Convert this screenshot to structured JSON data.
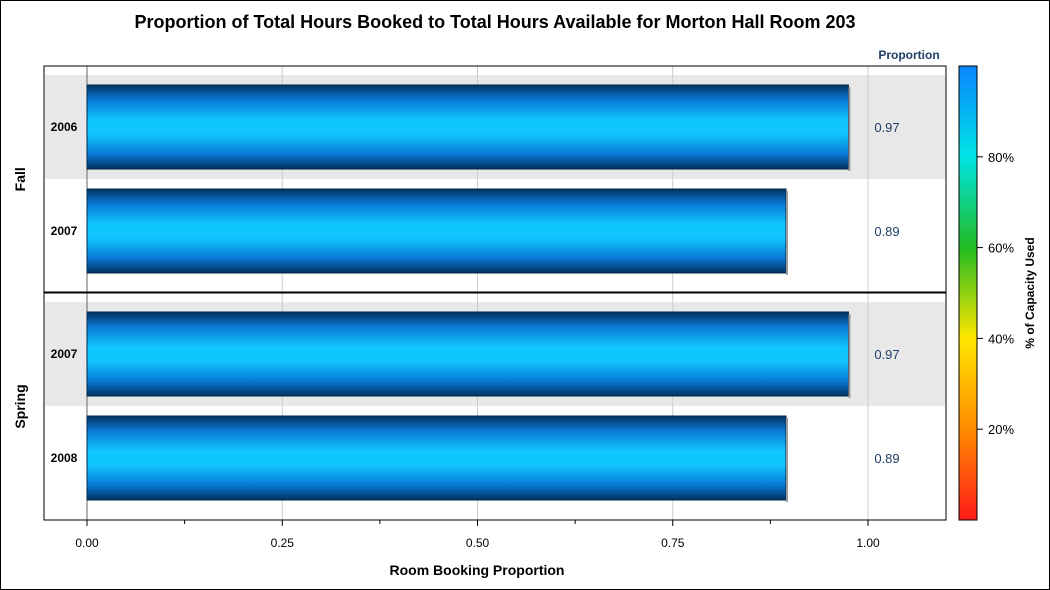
{
  "chart_data": {
    "type": "bar",
    "orientation": "horizontal",
    "title": "Proportion of Total Hours Booked to Total Hours Available for Morton Hall Room 203",
    "xlabel": "Room Booking Proportion",
    "ylabel": "",
    "xlim": [
      0,
      1.1
    ],
    "xticks": [
      0.0,
      0.25,
      0.5,
      0.75,
      1.0
    ],
    "xtick_labels": [
      "0.00",
      "0.25",
      "0.50",
      "0.75",
      "1.00"
    ],
    "grid": true,
    "stat_column_header": "Proportion",
    "groups": [
      {
        "name": "Fall",
        "categories": [
          "2006",
          "2007"
        ],
        "values": [
          0.975,
          0.895
        ],
        "value_labels": [
          "0.97",
          "0.89"
        ]
      },
      {
        "name": "Spring",
        "categories": [
          "2007",
          "2008"
        ],
        "values": [
          0.975,
          0.895
        ],
        "value_labels": [
          "0.97",
          "0.89"
        ]
      }
    ],
    "legend": {
      "title": "% of Capacity Used",
      "type": "color-ramp",
      "placement": "right",
      "range": [
        0,
        100
      ],
      "ticks": [
        20,
        40,
        60,
        80
      ],
      "tick_labels": [
        "20%",
        "40%",
        "60%",
        "80%"
      ],
      "colors": [
        "#ff1a1a",
        "#ff8c00",
        "#ffe600",
        "#22bb22",
        "#00e5e5",
        "#0a84ff"
      ]
    },
    "bar_color": "#0a7ad6",
    "band_color": "#e8e8e8"
  }
}
